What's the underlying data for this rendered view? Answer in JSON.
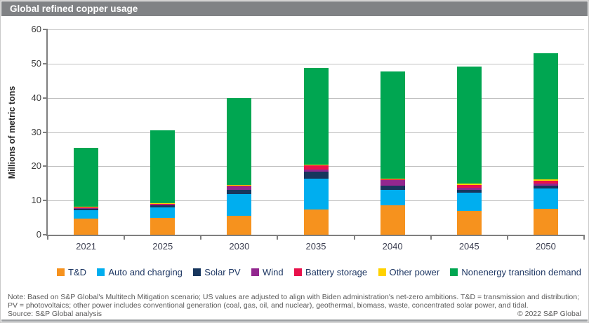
{
  "header": {
    "title": "Global refined copper usage"
  },
  "chart_data": {
    "type": "bar",
    "stacked": true,
    "title": "Global refined copper usage",
    "xlabel": "",
    "ylabel": "Millions of metric tons",
    "ylim": [
      0,
      60
    ],
    "yticks": [
      0,
      10,
      20,
      30,
      40,
      50,
      60
    ],
    "grid": true,
    "legend_position": "bottom",
    "categories": [
      "2021",
      "2025",
      "2030",
      "2035",
      "2040",
      "2045",
      "2050"
    ],
    "series": [
      {
        "name": "T&D",
        "color": "#F6921E",
        "values": [
          4.7,
          4.9,
          5.5,
          7.4,
          8.6,
          7.0,
          7.6
        ]
      },
      {
        "name": "Auto and charging",
        "color": "#00AEEF",
        "values": [
          2.5,
          3.1,
          6.4,
          8.9,
          4.5,
          5.3,
          5.9
        ]
      },
      {
        "name": "Solar PV",
        "color": "#17365D",
        "values": [
          0.4,
          0.6,
          1.2,
          2.1,
          1.2,
          0.9,
          0.8
        ]
      },
      {
        "name": "Wind",
        "color": "#92278F",
        "values": [
          0.2,
          0.2,
          1.0,
          0.7,
          1.6,
          0.6,
          0.7
        ]
      },
      {
        "name": "Battery storage",
        "color": "#E8114B",
        "values": [
          0.1,
          0.2,
          0.3,
          1.2,
          0.3,
          0.8,
          0.8
        ]
      },
      {
        "name": "Other power",
        "color": "#FFD200",
        "values": [
          0.3,
          0.3,
          0.2,
          0.2,
          0.2,
          0.4,
          0.4
        ]
      },
      {
        "name": "Nonenergy transition demand",
        "color": "#00A651",
        "values": [
          17.1,
          21.3,
          25.4,
          28.3,
          31.4,
          34.1,
          36.8
        ]
      }
    ]
  },
  "footer": {
    "note": "Note: Based on S&P Global's Multitech Mitigation scenario; US values are adjusted to align with Biden administration's net-zero ambitions. T&D = transmission and distribution; PV = photovoltaics; other power includes conventional generation (coal, gas, oil, and nuclear), geothermal, biomass, waste, concentrated solar power, and tidal.",
    "source": "Source: S&P Global analysis",
    "copyright": "© 2022 S&P Global"
  },
  "theme": {
    "titlebar_bg": "#808285",
    "grid_color": "#C0C0C0",
    "axis_color": "#7F7F7F",
    "legend_text_color": "#1F3864",
    "note_text_color": "#595959"
  }
}
